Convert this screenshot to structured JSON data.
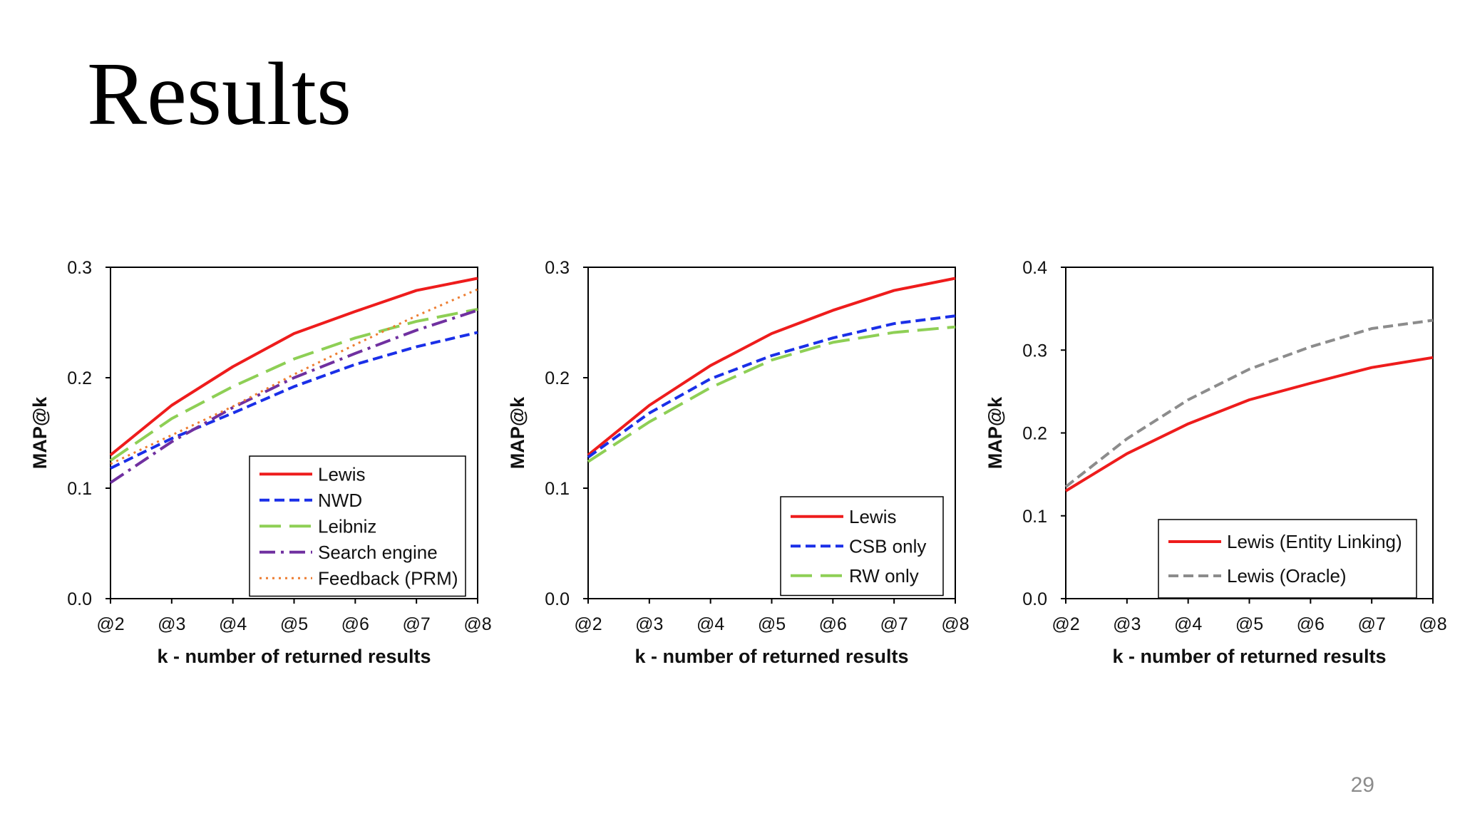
{
  "slide": {
    "title": "Results",
    "page_number": "29"
  },
  "chart_data": [
    {
      "type": "line",
      "categories": [
        "@2",
        "@3",
        "@4",
        "@5",
        "@6",
        "@7",
        "@8"
      ],
      "xlabel": "k - number of returned results",
      "ylabel": "MAP@k",
      "ylim": [
        0,
        0.3
      ],
      "yticks": [
        "0.0",
        "0.1",
        "0.2",
        "0.3"
      ],
      "legend_position": "bottom-right",
      "series": [
        {
          "name": "Lewis",
          "color": "#ee1c1c",
          "dash": "solid",
          "values": [
            0.13,
            0.175,
            0.21,
            0.24,
            0.26,
            0.279,
            0.29
          ]
        },
        {
          "name": "NWD",
          "color": "#1a2fe8",
          "dash": "dash",
          "values": [
            0.118,
            0.145,
            0.168,
            0.192,
            0.212,
            0.228,
            0.241
          ]
        },
        {
          "name": "Leibniz",
          "color": "#8ecf55",
          "dash": "longdash",
          "values": [
            0.125,
            0.163,
            0.192,
            0.217,
            0.236,
            0.251,
            0.262
          ]
        },
        {
          "name": "Search engine",
          "color": "#7030a0",
          "dash": "dashdot",
          "values": [
            0.105,
            0.142,
            0.173,
            0.2,
            0.222,
            0.243,
            0.261
          ]
        },
        {
          "name": "Feedback (PRM)",
          "color": "#ed7d31",
          "dash": "dot",
          "values": [
            0.122,
            0.148,
            0.174,
            0.203,
            0.23,
            0.256,
            0.28
          ]
        }
      ]
    },
    {
      "type": "line",
      "categories": [
        "@2",
        "@3",
        "@4",
        "@5",
        "@6",
        "@7",
        "@8"
      ],
      "xlabel": "k - number of returned results",
      "ylabel": "MAP@k",
      "ylim": [
        0,
        0.3
      ],
      "yticks": [
        "0.0",
        "0.1",
        "0.2",
        "0.3"
      ],
      "legend_position": "bottom-right",
      "series": [
        {
          "name": "Lewis",
          "color": "#ee1c1c",
          "dash": "solid",
          "values": [
            0.13,
            0.175,
            0.211,
            0.24,
            0.261,
            0.279,
            0.29
          ]
        },
        {
          "name": "CSB only",
          "color": "#1a2fe8",
          "dash": "dash",
          "values": [
            0.128,
            0.168,
            0.199,
            0.22,
            0.236,
            0.249,
            0.256
          ]
        },
        {
          "name": "RW only",
          "color": "#8ecf55",
          "dash": "longdash",
          "values": [
            0.124,
            0.16,
            0.191,
            0.216,
            0.232,
            0.241,
            0.246
          ]
        }
      ]
    },
    {
      "type": "line",
      "categories": [
        "@2",
        "@3",
        "@4",
        "@5",
        "@6",
        "@7",
        "@8"
      ],
      "xlabel": "k - number of returned results",
      "ylabel": "MAP@k",
      "ylim": [
        0,
        0.4
      ],
      "yticks": [
        "0.0",
        "0.1",
        "0.2",
        "0.3",
        "0.4"
      ],
      "legend_position": "bottom-right",
      "series": [
        {
          "name": "Lewis (Entity Linking)",
          "color": "#ee1c1c",
          "dash": "solid",
          "values": [
            0.13,
            0.175,
            0.211,
            0.24,
            0.26,
            0.279,
            0.291
          ]
        },
        {
          "name": "Lewis (Oracle)",
          "color": "#8c8c8c",
          "dash": "dash",
          "values": [
            0.135,
            0.193,
            0.24,
            0.277,
            0.304,
            0.326,
            0.336
          ]
        }
      ]
    }
  ]
}
